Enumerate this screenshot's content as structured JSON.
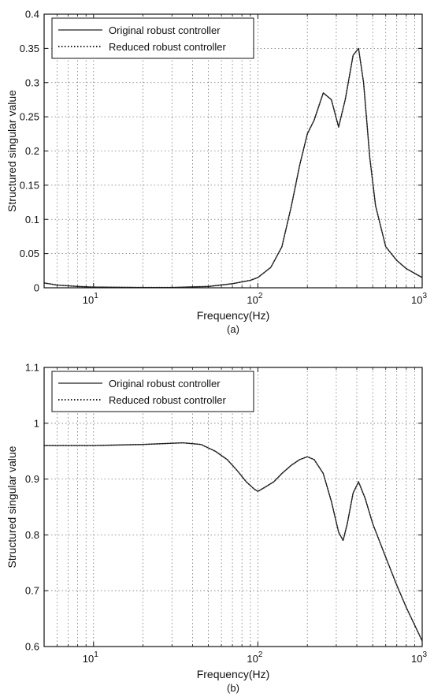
{
  "chart_data": [
    {
      "type": "line",
      "panel_label": "(a)",
      "xlabel": "Frequency(Hz)",
      "ylabel": "Structured singular value",
      "xscale": "log",
      "xlim": [
        5,
        1000
      ],
      "ylim": [
        0,
        0.4
      ],
      "xticks": [
        10,
        100,
        1000
      ],
      "xtick_labels": [
        {
          "base": "10",
          "exp": "1"
        },
        {
          "base": "10",
          "exp": "2"
        },
        {
          "base": "10",
          "exp": "3"
        }
      ],
      "yticks": [
        0,
        0.05,
        0.1,
        0.15,
        0.2,
        0.25,
        0.3,
        0.35,
        0.4
      ],
      "ytick_labels": [
        "0",
        "0.05",
        "0.1",
        "0.15",
        "0.2",
        "0.25",
        "0.3",
        "0.35",
        "0.4"
      ],
      "grid": true,
      "legend_position": "top-left",
      "series": [
        {
          "name": "Original robust controller",
          "style": "solid",
          "x": [
            5,
            6,
            8,
            10,
            20,
            30,
            50,
            70,
            90,
            100,
            120,
            140,
            160,
            180,
            200,
            220,
            250,
            280,
            310,
            340,
            380,
            410,
            440,
            480,
            520,
            600,
            700,
            800,
            1000
          ],
          "y": [
            0.007,
            0.004,
            0.002,
            0.001,
            0.0005,
            0.0005,
            0.002,
            0.006,
            0.011,
            0.015,
            0.03,
            0.06,
            0.12,
            0.18,
            0.225,
            0.245,
            0.285,
            0.275,
            0.235,
            0.275,
            0.34,
            0.35,
            0.3,
            0.19,
            0.12,
            0.06,
            0.04,
            0.028,
            0.015
          ]
        },
        {
          "name": "Reduced robust controller",
          "style": "dotted",
          "x": [
            5,
            6,
            8,
            10,
            20,
            30,
            50,
            70,
            90,
            100,
            120,
            140,
            160,
            180,
            200,
            220,
            250,
            280,
            310,
            340,
            380,
            410,
            440,
            480,
            520,
            600,
            700,
            800,
            1000
          ],
          "y": [
            0.007,
            0.004,
            0.002,
            0.001,
            0.0005,
            0.0005,
            0.002,
            0.006,
            0.011,
            0.015,
            0.03,
            0.06,
            0.12,
            0.18,
            0.225,
            0.245,
            0.285,
            0.275,
            0.235,
            0.275,
            0.34,
            0.35,
            0.3,
            0.19,
            0.12,
            0.06,
            0.04,
            0.028,
            0.015
          ]
        }
      ]
    },
    {
      "type": "line",
      "panel_label": "(b)",
      "xlabel": "Frequency(Hz)",
      "ylabel": "Structured singular value",
      "xscale": "log",
      "xlim": [
        5,
        1000
      ],
      "ylim": [
        0.6,
        1.1
      ],
      "xticks": [
        10,
        100,
        1000
      ],
      "xtick_labels": [
        {
          "base": "10",
          "exp": "1"
        },
        {
          "base": "10",
          "exp": "2"
        },
        {
          "base": "10",
          "exp": "3"
        }
      ],
      "yticks": [
        0.6,
        0.7,
        0.8,
        0.9,
        1.0,
        1.1
      ],
      "ytick_labels": [
        "0.6",
        "0.7",
        "0.8",
        "0.9",
        "1",
        "1.1"
      ],
      "grid": true,
      "legend_position": "top-left",
      "series": [
        {
          "name": "Original robust controller",
          "style": "solid",
          "x": [
            5,
            10,
            20,
            35,
            45,
            55,
            65,
            75,
            85,
            95,
            100,
            110,
            125,
            140,
            160,
            180,
            200,
            220,
            250,
            280,
            310,
            330,
            350,
            380,
            410,
            450,
            500,
            600,
            700,
            800,
            1000
          ],
          "y": [
            0.96,
            0.96,
            0.962,
            0.965,
            0.962,
            0.95,
            0.935,
            0.915,
            0.895,
            0.882,
            0.878,
            0.885,
            0.895,
            0.91,
            0.925,
            0.935,
            0.94,
            0.935,
            0.91,
            0.86,
            0.805,
            0.79,
            0.82,
            0.875,
            0.895,
            0.865,
            0.82,
            0.76,
            0.71,
            0.67,
            0.61
          ]
        },
        {
          "name": "Reduced robust controller",
          "style": "dotted",
          "x": [
            5,
            10,
            20,
            35,
            45,
            55,
            65,
            75,
            85,
            95,
            100,
            110,
            125,
            140,
            160,
            180,
            200,
            220,
            250,
            280,
            310,
            330,
            350,
            380,
            410,
            450,
            500,
            600,
            700,
            800,
            1000
          ],
          "y": [
            0.96,
            0.96,
            0.962,
            0.965,
            0.962,
            0.95,
            0.935,
            0.915,
            0.895,
            0.882,
            0.878,
            0.885,
            0.895,
            0.91,
            0.925,
            0.935,
            0.94,
            0.935,
            0.91,
            0.86,
            0.805,
            0.79,
            0.82,
            0.875,
            0.895,
            0.865,
            0.82,
            0.76,
            0.71,
            0.67,
            0.61
          ]
        }
      ]
    }
  ]
}
